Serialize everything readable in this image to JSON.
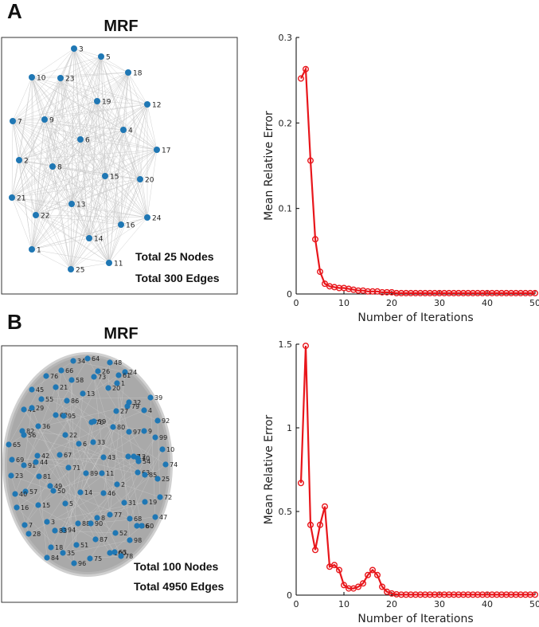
{
  "colors": {
    "node": "#1f77b4",
    "edge": "#c8c8c8",
    "series": "#e8161b"
  },
  "panels": [
    {
      "letter": "A",
      "network": {
        "title": "MRF",
        "total_nodes": "Total 25 Nodes",
        "total_edges": "Total 300 Edges"
      }
    },
    {
      "letter": "B",
      "network": {
        "title": "MRF",
        "total_nodes": "Total 100 Nodes",
        "total_edges": "Total 4950 Edges"
      }
    }
  ],
  "chart_data": [
    {
      "type": "line",
      "xlabel": "Number of Iterations",
      "ylabel": "Mean Relative Error",
      "xlim": [
        0,
        50
      ],
      "ylim": [
        0,
        0.3
      ],
      "xticks": [
        "0",
        "10",
        "20",
        "30",
        "40",
        "50"
      ],
      "yticks": [
        "0",
        "0.1",
        "0.2",
        "0.3"
      ],
      "grid": false,
      "markers": "circle",
      "x": [
        1,
        2,
        3,
        4,
        5,
        6,
        7,
        8,
        9,
        10,
        11,
        12,
        13,
        14,
        15,
        16,
        17,
        18,
        19,
        20,
        21,
        22,
        23,
        24,
        25,
        26,
        27,
        28,
        29,
        30,
        31,
        32,
        33,
        34,
        35,
        36,
        37,
        38,
        39,
        40,
        41,
        42,
        43,
        44,
        45,
        46,
        47,
        48,
        49,
        50
      ],
      "y": [
        0.252,
        0.263,
        0.156,
        0.064,
        0.026,
        0.012,
        0.009,
        0.008,
        0.007,
        0.007,
        0.006,
        0.005,
        0.004,
        0.004,
        0.003,
        0.003,
        0.003,
        0.002,
        0.002,
        0.002,
        0.001,
        0.001,
        0.001,
        0.001,
        0.001,
        0.001,
        0.001,
        0.001,
        0.001,
        0.001,
        0.001,
        0.001,
        0.001,
        0.001,
        0.001,
        0.001,
        0.001,
        0.001,
        0.001,
        0.001,
        0.001,
        0.001,
        0.001,
        0.001,
        0.001,
        0.001,
        0.001,
        0.001,
        0.001,
        0.001
      ]
    },
    {
      "type": "line",
      "xlabel": "Number of Iterations",
      "ylabel": "Mean Relative Error",
      "xlim": [
        0,
        50
      ],
      "ylim": [
        0,
        1.5
      ],
      "xticks": [
        "0",
        "10",
        "20",
        "30",
        "40",
        "50"
      ],
      "yticks": [
        "0",
        "0.5",
        "1",
        "1.5"
      ],
      "grid": false,
      "markers": "circle",
      "x": [
        1,
        2,
        3,
        4,
        5,
        6,
        7,
        8,
        9,
        10,
        11,
        12,
        13,
        14,
        15,
        16,
        17,
        18,
        19,
        20,
        21,
        22,
        23,
        24,
        25,
        26,
        27,
        28,
        29,
        30,
        31,
        32,
        33,
        34,
        35,
        36,
        37,
        38,
        39,
        40,
        41,
        42,
        43,
        44,
        45,
        46,
        47,
        48,
        49,
        50
      ],
      "y": [
        0.67,
        1.49,
        0.42,
        0.27,
        0.42,
        0.53,
        0.17,
        0.18,
        0.15,
        0.06,
        0.04,
        0.04,
        0.05,
        0.07,
        0.12,
        0.15,
        0.12,
        0.05,
        0.02,
        0.01,
        0.005,
        0.003,
        0.003,
        0.003,
        0.003,
        0.003,
        0.003,
        0.003,
        0.003,
        0.003,
        0.003,
        0.003,
        0.003,
        0.003,
        0.003,
        0.003,
        0.003,
        0.003,
        0.003,
        0.003,
        0.003,
        0.003,
        0.003,
        0.003,
        0.003,
        0.003,
        0.003,
        0.003,
        0.003,
        0.003
      ]
    }
  ]
}
